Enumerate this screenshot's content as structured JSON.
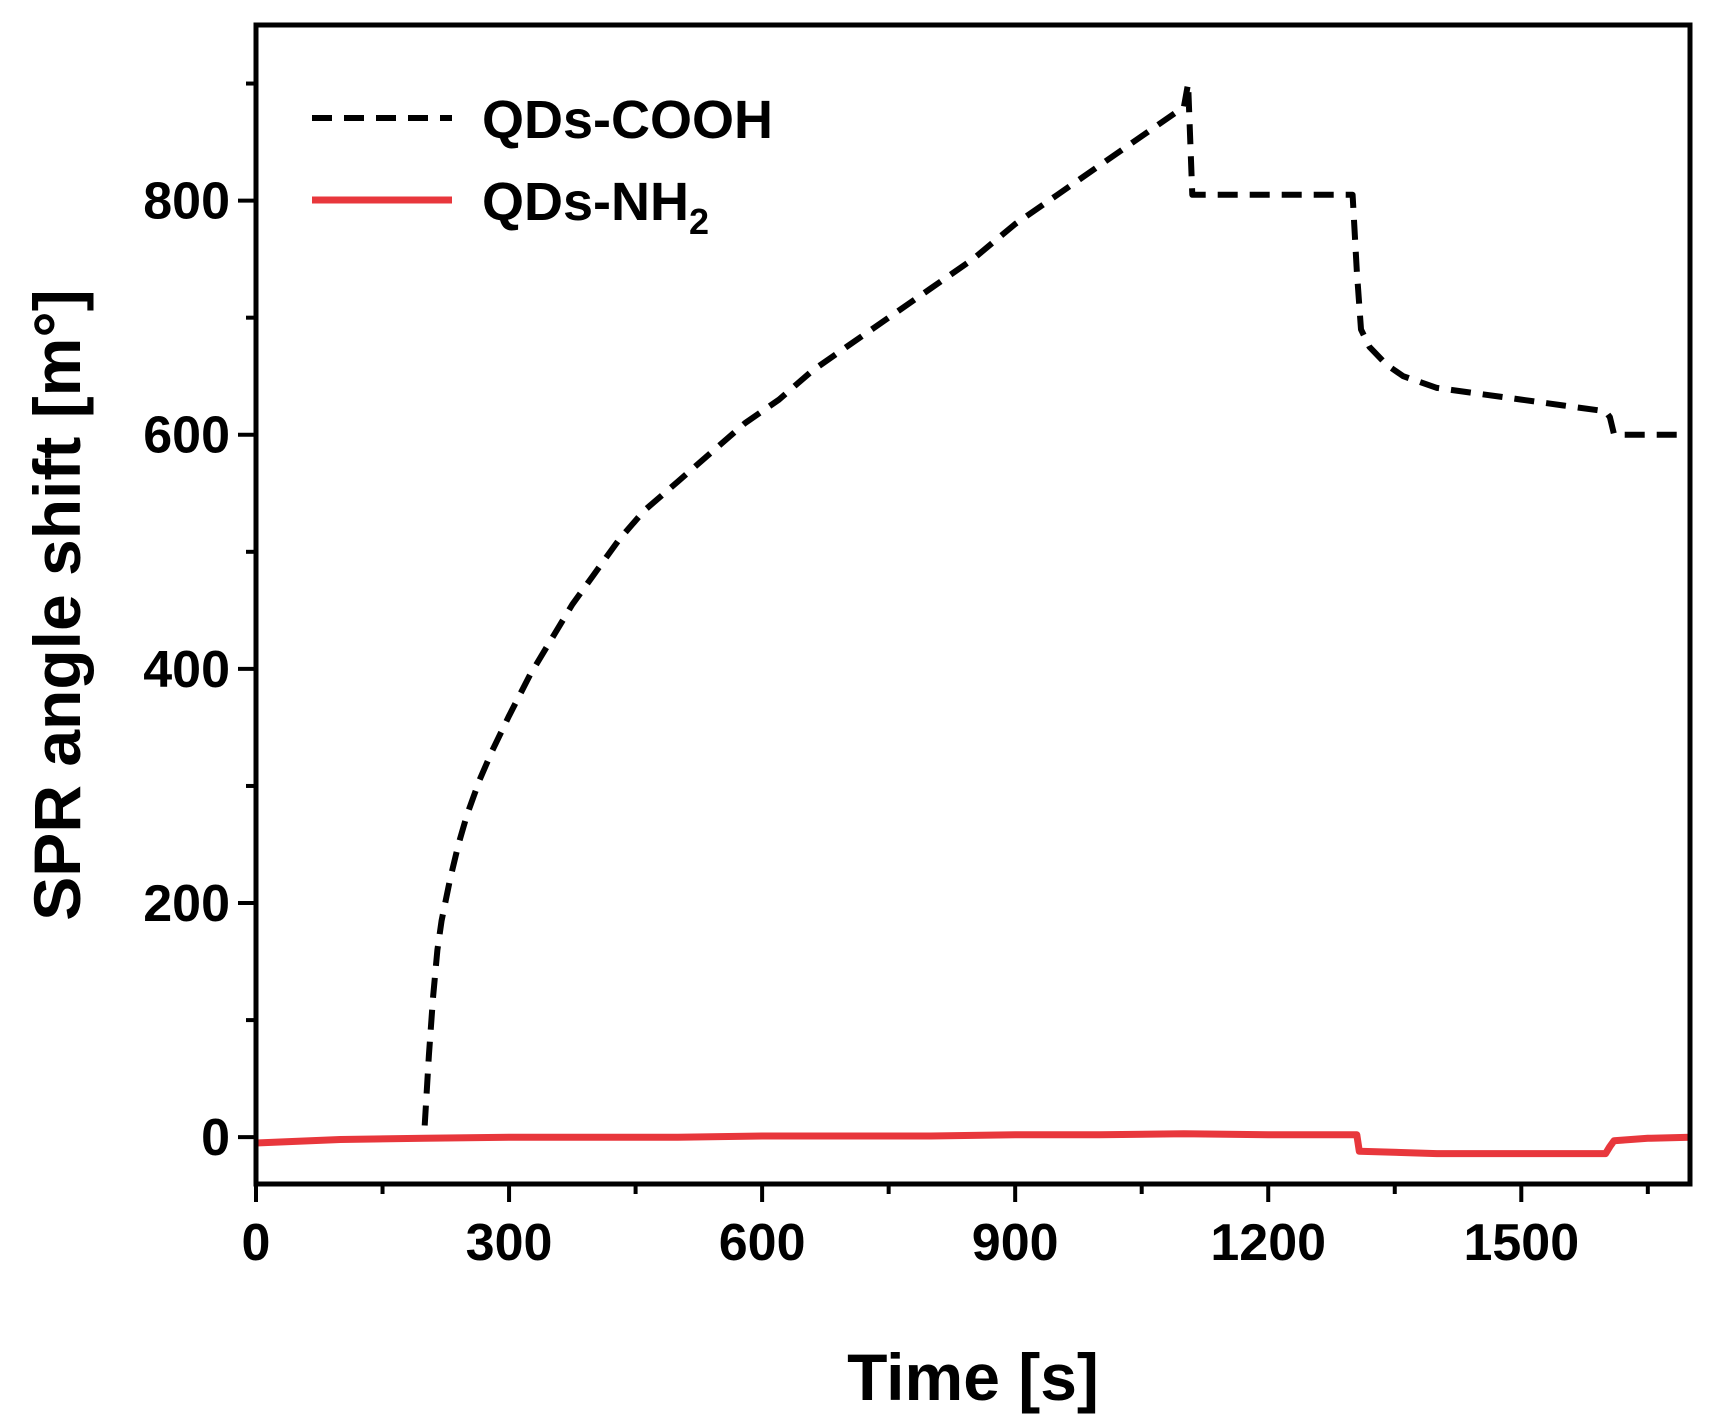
{
  "chart_data": {
    "type": "line",
    "title": "",
    "xlabel": "Time [s]",
    "ylabel": "SPR angle shift [m°]",
    "xlim": [
      0,
      1700
    ],
    "ylim": [
      -40,
      950
    ],
    "xticks": [
      0,
      300,
      600,
      900,
      1200,
      1500
    ],
    "xtick_labels": [
      "0",
      "300",
      "600",
      "900",
      "1200",
      "1500"
    ],
    "yticks": [
      0,
      200,
      400,
      600,
      800
    ],
    "ytick_labels": [
      "0",
      "200",
      "400",
      "600",
      "800"
    ],
    "legend_position": "top-left",
    "series": [
      {
        "name": "QDs-COOH",
        "legend_main": "QDs-COOH",
        "legend_sub": "",
        "color": "#000000",
        "style": "dashed",
        "x": [
          200,
          205,
          210,
          215,
          220,
          230,
          240,
          250,
          265,
          280,
          300,
          325,
          350,
          375,
          400,
          430,
          460,
          500,
          540,
          580,
          620,
          660,
          700,
          750,
          800,
          850,
          900,
          950,
          1000,
          1050,
          1100,
          1105,
          1110,
          1150,
          1200,
          1300,
          1305,
          1310,
          1320,
          1340,
          1360,
          1400,
          1450,
          1500,
          1550,
          1600,
          1605,
          1610,
          1650,
          1700
        ],
        "y": [
          10,
          70,
          120,
          160,
          185,
          220,
          250,
          275,
          305,
          330,
          360,
          395,
          425,
          455,
          480,
          510,
          535,
          560,
          585,
          610,
          630,
          655,
          675,
          700,
          725,
          750,
          780,
          805,
          830,
          855,
          880,
          900,
          805,
          805,
          805,
          805,
          740,
          690,
          675,
          660,
          650,
          640,
          635,
          630,
          625,
          620,
          615,
          600,
          600,
          600
        ]
      },
      {
        "name": "QDs-NH2",
        "legend_main": "QDs-NH",
        "legend_sub": "2",
        "color": "#e8373c",
        "style": "solid",
        "x": [
          0,
          100,
          200,
          300,
          400,
          500,
          600,
          700,
          800,
          900,
          1000,
          1100,
          1200,
          1305,
          1308,
          1400,
          1500,
          1600,
          1605,
          1610,
          1650,
          1700
        ],
        "y": [
          -5,
          -2,
          -1,
          0,
          0,
          0,
          1,
          1,
          1,
          2,
          2,
          3,
          2,
          2,
          -12,
          -14,
          -14,
          -14,
          -8,
          -3,
          -1,
          0
        ]
      }
    ]
  }
}
